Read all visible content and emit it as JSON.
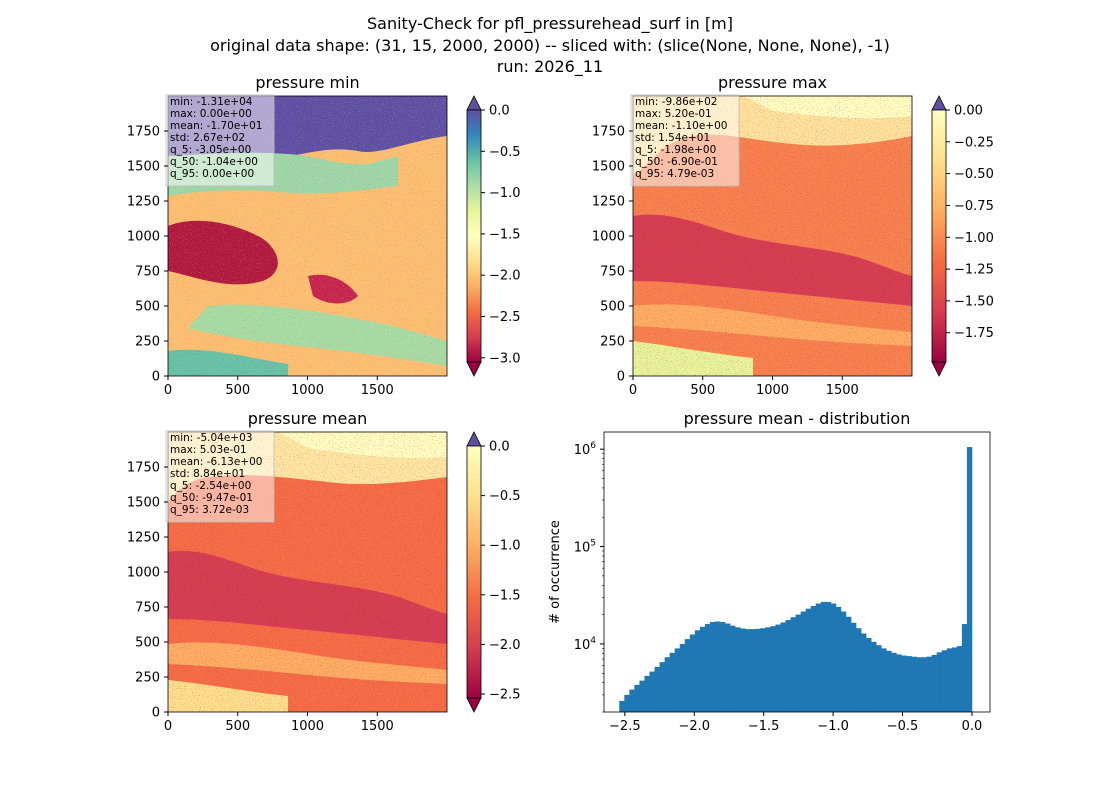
{
  "figure": {
    "title_lines": [
      "Sanity-Check for pfl_pressurehead_surf in [m]",
      "original data shape: (31, 15, 2000, 2000) -- sliced with: (slice(None, None, None), -1)",
      "run: 2026_11"
    ]
  },
  "chart_data": [
    {
      "type": "heatmap",
      "id": "min",
      "title": "pressure min",
      "x_ticks": [
        0,
        500,
        1000,
        1500
      ],
      "y_ticks": [
        0,
        250,
        500,
        750,
        1000,
        1250,
        1500,
        1750
      ],
      "xlim": [
        0,
        2000
      ],
      "ylim": [
        0,
        2000
      ],
      "stats": [
        "min: -1.31e+04",
        "max: 0.00e+00",
        "mean: -1.70e+01",
        "std: 2.67e+02",
        "q_5: -3.05e+00",
        "q_50: -1.04e+00",
        "q_95: 0.00e+00"
      ],
      "colormap": "Spectral",
      "colorbar_range": [
        -3.05,
        0.0
      ],
      "colorbar_ticks": [
        "0.0",
        "−0.5",
        "−1.0",
        "−1.5",
        "−2.0",
        "−2.5",
        "−3.0"
      ],
      "colorbar_tick_values": [
        0.0,
        -0.5,
        -1.0,
        -1.5,
        -2.0,
        -2.5,
        -3.0
      ],
      "extend": [
        "min",
        "max"
      ],
      "extend_colors": {
        "top": "#5e4fa2",
        "bottom": "#9e0142"
      }
    },
    {
      "type": "heatmap",
      "id": "max",
      "title": "pressure max",
      "x_ticks": [
        0,
        500,
        1000,
        1500
      ],
      "y_ticks": [
        0,
        250,
        500,
        750,
        1000,
        1250,
        1500,
        1750
      ],
      "xlim": [
        0,
        2000
      ],
      "ylim": [
        0,
        2000
      ],
      "stats": [
        "min: -9.86e+02",
        "max: 5.20e-01",
        "mean: -1.10e+00",
        "std: 1.54e+01",
        "q_5: -1.98e+00",
        "q_50: -6.90e-01",
        "q_95: 4.79e-03"
      ],
      "colormap": "Spectral",
      "colorbar_range": [
        -1.98,
        0.0
      ],
      "colorbar_ticks": [
        "0.00",
        "−0.25",
        "−0.50",
        "−0.75",
        "−1.00",
        "−1.25",
        "−1.50",
        "−1.75"
      ],
      "colorbar_tick_values": [
        0.0,
        -0.25,
        -0.5,
        -0.75,
        -1.0,
        -1.25,
        -1.5,
        -1.75
      ],
      "extend": [
        "min",
        "max"
      ],
      "extend_colors": {
        "top": "#5e4fa2",
        "bottom": "#9e0142"
      }
    },
    {
      "type": "heatmap",
      "id": "mean",
      "title": "pressure mean",
      "x_ticks": [
        0,
        500,
        1000,
        1500
      ],
      "y_ticks": [
        0,
        250,
        500,
        750,
        1000,
        1250,
        1500,
        1750
      ],
      "xlim": [
        0,
        2000
      ],
      "ylim": [
        0,
        2000
      ],
      "stats": [
        "min: -5.04e+03",
        "max: 5.03e-01",
        "mean: -6.13e+00",
        "std: 8.84e+01",
        "q_5: -2.54e+00",
        "q_50: -9.47e-01",
        "q_95: 3.72e-03"
      ],
      "colormap": "Spectral",
      "colorbar_range": [
        -2.54,
        0.0
      ],
      "colorbar_ticks": [
        "0.0",
        "−0.5",
        "−1.0",
        "−1.5",
        "−2.0",
        "−2.5"
      ],
      "colorbar_tick_values": [
        0.0,
        -0.5,
        -1.0,
        -1.5,
        -2.0,
        -2.5
      ],
      "extend": [
        "min",
        "max"
      ],
      "extend_colors": {
        "top": "#5e4fa2",
        "bottom": "#9e0142"
      }
    },
    {
      "type": "bar",
      "id": "hist",
      "title": "pressure mean - distribution",
      "ylabel": "# of occurrence",
      "xlim": [
        -2.65,
        0.13
      ],
      "yscale": "log",
      "ylim": [
        2000,
        1500000
      ],
      "x_ticks": [
        -2.5,
        -2.0,
        -1.5,
        -1.0,
        -0.5,
        0.0
      ],
      "x_tick_labels": [
        "−2.5",
        "−2.0",
        "−1.5",
        "−1.0",
        "−0.5",
        "0.0"
      ],
      "y_ticks": [
        10000,
        100000,
        1000000
      ],
      "y_tick_labels": [
        "10",
        "10",
        "10"
      ],
      "y_tick_exponents": [
        "4",
        "5",
        "6"
      ],
      "bar_color": "#1f77b4",
      "bin_range": [
        -2.54,
        0.0
      ],
      "counts": [
        2600,
        3000,
        3400,
        3800,
        4200,
        4700,
        5200,
        5800,
        6500,
        7300,
        8100,
        9000,
        10000,
        11200,
        12500,
        13800,
        15000,
        16000,
        16800,
        17000,
        16800,
        16200,
        15400,
        14800,
        14400,
        14200,
        14200,
        14300,
        14500,
        14800,
        15200,
        15800,
        16600,
        17600,
        18800,
        20000,
        21500,
        23000,
        24500,
        26000,
        27000,
        27000,
        26000,
        24000,
        21500,
        19000,
        16500,
        14500,
        12800,
        11500,
        10500,
        9700,
        9000,
        8500,
        8100,
        7800,
        7600,
        7500,
        7400,
        7300,
        7300,
        7400,
        7700,
        8200,
        8600,
        9000,
        9200,
        9500,
        16000,
        1050000
      ]
    }
  ]
}
